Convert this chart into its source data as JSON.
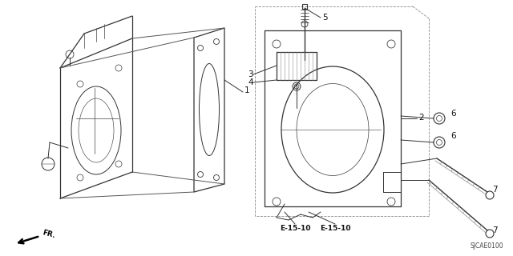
{
  "bg_color": "#ffffff",
  "line_color": "#333333",
  "label_color": "#111111",
  "code": "SJCAE0100",
  "ref_labels": [
    "E-15-10",
    "E-15-10"
  ],
  "part_numbers": [
    "1",
    "2",
    "3",
    "4",
    "5",
    "6",
    "6",
    "7",
    "7"
  ]
}
